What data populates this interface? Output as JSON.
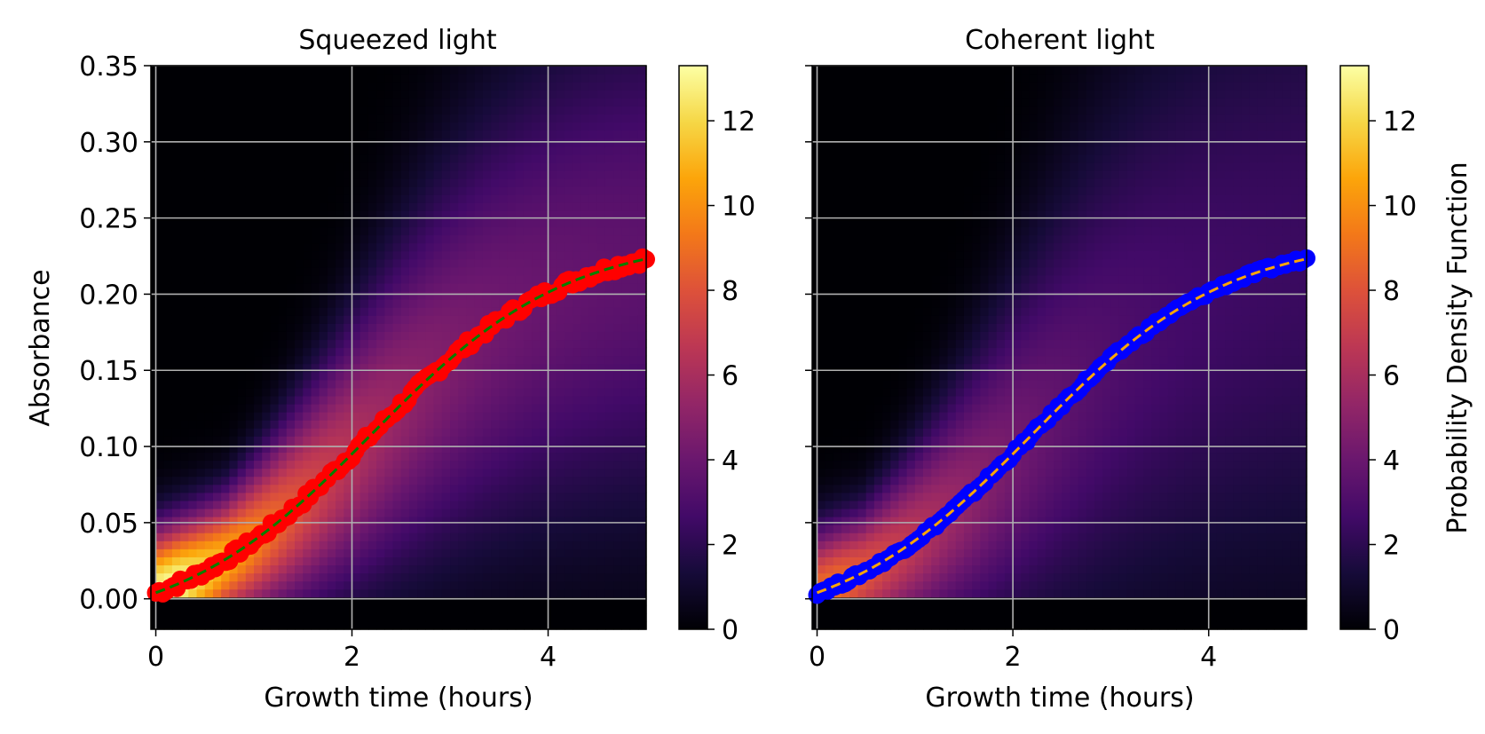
{
  "chart_data": [
    {
      "type": "heatmap",
      "title": "Squeezed light",
      "xlabel": "Growth time (hours)",
      "ylabel": "Absorbance",
      "xlim": [
        -0.05,
        5.0
      ],
      "ylim": [
        -0.02,
        0.35
      ],
      "xticks": [
        0,
        2,
        4
      ],
      "xtick_labels": [
        "0",
        "2",
        "4"
      ],
      "yticks": [
        0.0,
        0.05,
        0.1,
        0.15,
        0.2,
        0.25,
        0.3,
        0.35
      ],
      "ytick_labels": [
        "0.00",
        "0.05",
        "0.10",
        "0.15",
        "0.20",
        "0.25",
        "0.30",
        "0.35"
      ],
      "grid": true,
      "colormap": "inferno",
      "heatmap_peak": 13.3,
      "heatmap_spread_factor": 0.45,
      "colorbar": {
        "range": [
          0,
          13.3
        ],
        "ticks": [
          0,
          2,
          4,
          6,
          8,
          10,
          12
        ],
        "tick_labels": [
          "0",
          "2",
          "4",
          "6",
          "8",
          "10",
          "12"
        ],
        "label": ""
      },
      "curve_model": "logistic",
      "curve_params": {
        "asymptote": 0.26,
        "rate": 1.0,
        "midpoint": 2.2
      },
      "series": [
        {
          "name": "data points",
          "style": "markers",
          "color": "#ff0000",
          "jitter": 0.003
        },
        {
          "name": "fit",
          "style": "dashed",
          "color": "#008000"
        }
      ]
    },
    {
      "type": "heatmap",
      "title": "Coherent light",
      "xlabel": "Growth time (hours)",
      "ylabel": "",
      "xlim": [
        -0.05,
        5.0
      ],
      "ylim": [
        -0.02,
        0.35
      ],
      "xticks": [
        0,
        2,
        4
      ],
      "xtick_labels": [
        "0",
        "2",
        "4"
      ],
      "yticks": [
        0.0,
        0.05,
        0.1,
        0.15,
        0.2,
        0.25,
        0.3,
        0.35
      ],
      "ytick_labels": [],
      "grid": true,
      "colormap": "inferno",
      "heatmap_peak": 9.0,
      "heatmap_spread_factor": 0.6,
      "colorbar": {
        "range": [
          0,
          13.3
        ],
        "ticks": [
          0,
          2,
          4,
          6,
          8,
          10,
          12
        ],
        "tick_labels": [
          "0",
          "2",
          "4",
          "6",
          "8",
          "10",
          "12"
        ],
        "label": "Probability Density Function"
      },
      "curve_model": "logistic",
      "curve_params": {
        "asymptote": 0.26,
        "rate": 1.0,
        "midpoint": 2.2
      },
      "series": [
        {
          "name": "data points",
          "style": "markers",
          "color": "#0000ff",
          "jitter": 0.0015
        },
        {
          "name": "fit",
          "style": "dashed",
          "color": "#ffa500"
        }
      ]
    }
  ]
}
